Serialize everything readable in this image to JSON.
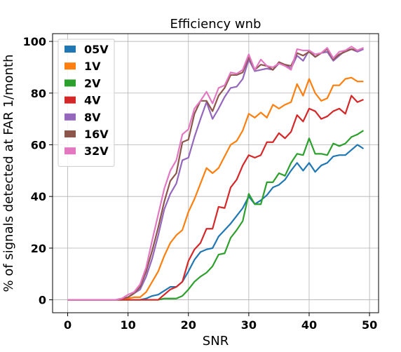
{
  "chart_data": {
    "type": "line",
    "title": "Efficiency wnb",
    "xlabel": "SNR",
    "ylabel": "% of signals detected at FAR 1/month",
    "xlim": [
      -2.5,
      51.5
    ],
    "ylim": [
      -5,
      103
    ],
    "xticks": [
      "0",
      "10",
      "20",
      "30",
      "40",
      "50"
    ],
    "yticks": [
      "0",
      "20",
      "40",
      "60",
      "80",
      "100"
    ],
    "grid": true,
    "legend_position": "top-left",
    "x": [
      0,
      1,
      2,
      3,
      4,
      5,
      6,
      7,
      8,
      9,
      10,
      11,
      12,
      13,
      14,
      15,
      16,
      17,
      18,
      19,
      20,
      21,
      22,
      23,
      24,
      25,
      26,
      27,
      28,
      29,
      30,
      31,
      32,
      33,
      34,
      35,
      36,
      37,
      38,
      39,
      40,
      41,
      42,
      43,
      44,
      45,
      46,
      47,
      48,
      49
    ],
    "series": [
      {
        "name": "05V",
        "color": "#1f77b4",
        "values": [
          0,
          0,
          0,
          0,
          0,
          0,
          0,
          0,
          0,
          0,
          0,
          0,
          0,
          0.5,
          1.5,
          2,
          3.5,
          5,
          5,
          7,
          11,
          15.5,
          18.5,
          19.5,
          20,
          24.5,
          27,
          29.5,
          32.5,
          35.5,
          40,
          37,
          38.5,
          40.5,
          43.5,
          44.5,
          46.5,
          50,
          53,
          50,
          53,
          49.5,
          52,
          53,
          55.5,
          56,
          56,
          58,
          60,
          58.5
        ]
      },
      {
        "name": "1V",
        "color": "#ff7f0e",
        "values": [
          0,
          0,
          0,
          0,
          0,
          0,
          0,
          0,
          0,
          0,
          0.5,
          1,
          1,
          3,
          7,
          11,
          17,
          22,
          25,
          27,
          34,
          39,
          45,
          51,
          49,
          51,
          55.5,
          60,
          61.5,
          65.5,
          72,
          70.5,
          72.5,
          70.5,
          75.5,
          74,
          75.5,
          76.5,
          83.5,
          79,
          85.5,
          80,
          77,
          78,
          83,
          83,
          85.5,
          86,
          84.5,
          84.5
        ]
      },
      {
        "name": "2V",
        "color": "#2ca02c",
        "values": [
          0,
          0,
          0,
          0,
          0,
          0,
          0,
          0,
          0,
          0,
          0,
          0,
          0,
          0,
          0,
          0,
          0.5,
          0.5,
          0.5,
          1.5,
          4,
          7,
          9,
          10.5,
          13,
          17.5,
          18,
          24,
          27,
          30.5,
          41,
          37,
          37,
          45.5,
          45.5,
          49,
          48,
          53,
          56.5,
          56,
          62.5,
          56.5,
          56.5,
          56,
          60.5,
          59.5,
          60.5,
          63,
          64,
          65.5
        ]
      },
      {
        "name": "4V",
        "color": "#d62728",
        "values": [
          0,
          0,
          0,
          0,
          0,
          0,
          0,
          0,
          0,
          0,
          0,
          0,
          0,
          0,
          0,
          0,
          2,
          4,
          5,
          7,
          15,
          19.5,
          22,
          27.5,
          27.5,
          36,
          35.5,
          43.5,
          46.5,
          52,
          56,
          55,
          56,
          61,
          61,
          64.5,
          62.5,
          65,
          71.5,
          69,
          74,
          73,
          70,
          71,
          73,
          74,
          72,
          79,
          76.5,
          77.5
        ]
      },
      {
        "name": "8V",
        "color": "#9467bd",
        "values": [
          0,
          0,
          0,
          0,
          0,
          0,
          0,
          0,
          0,
          0.5,
          1,
          2.5,
          4,
          9,
          16,
          25,
          35,
          41,
          45,
          54,
          55,
          63,
          70,
          76.5,
          70,
          74,
          78.5,
          82,
          82.5,
          85.5,
          93,
          88.5,
          89,
          89.5,
          89,
          91.5,
          91,
          89.5,
          94.5,
          92.5,
          96.5,
          94,
          95.5,
          96,
          92.5,
          94.5,
          96.5,
          97,
          96,
          97
        ]
      },
      {
        "name": "16V",
        "color": "#8c564b",
        "values": [
          0,
          0,
          0,
          0,
          0,
          0,
          0,
          0,
          0,
          0.5,
          1,
          2.5,
          5,
          11,
          19,
          28,
          38,
          46,
          49,
          61,
          62,
          72,
          77,
          77,
          73,
          79,
          82,
          87,
          87,
          88,
          94,
          89,
          91,
          90.5,
          89,
          92,
          91,
          90.5,
          95.5,
          94.5,
          96,
          94,
          95.5,
          97,
          93,
          95,
          96,
          97,
          96.5,
          97.5
        ]
      },
      {
        "name": "32V",
        "color": "#e377c2",
        "values": [
          0,
          0,
          0,
          0,
          0,
          0,
          0,
          0,
          0,
          0.5,
          2,
          3,
          6,
          12.5,
          23,
          33,
          43,
          50,
          54,
          64,
          66,
          74,
          77,
          80.5,
          76,
          82,
          83,
          88,
          87.5,
          89,
          95,
          89,
          93,
          90.5,
          90,
          91.5,
          90.5,
          89,
          97,
          96.5,
          96.5,
          95,
          95.5,
          97.5,
          93.5,
          96,
          96.5,
          98,
          96.5,
          97.5
        ]
      }
    ]
  }
}
